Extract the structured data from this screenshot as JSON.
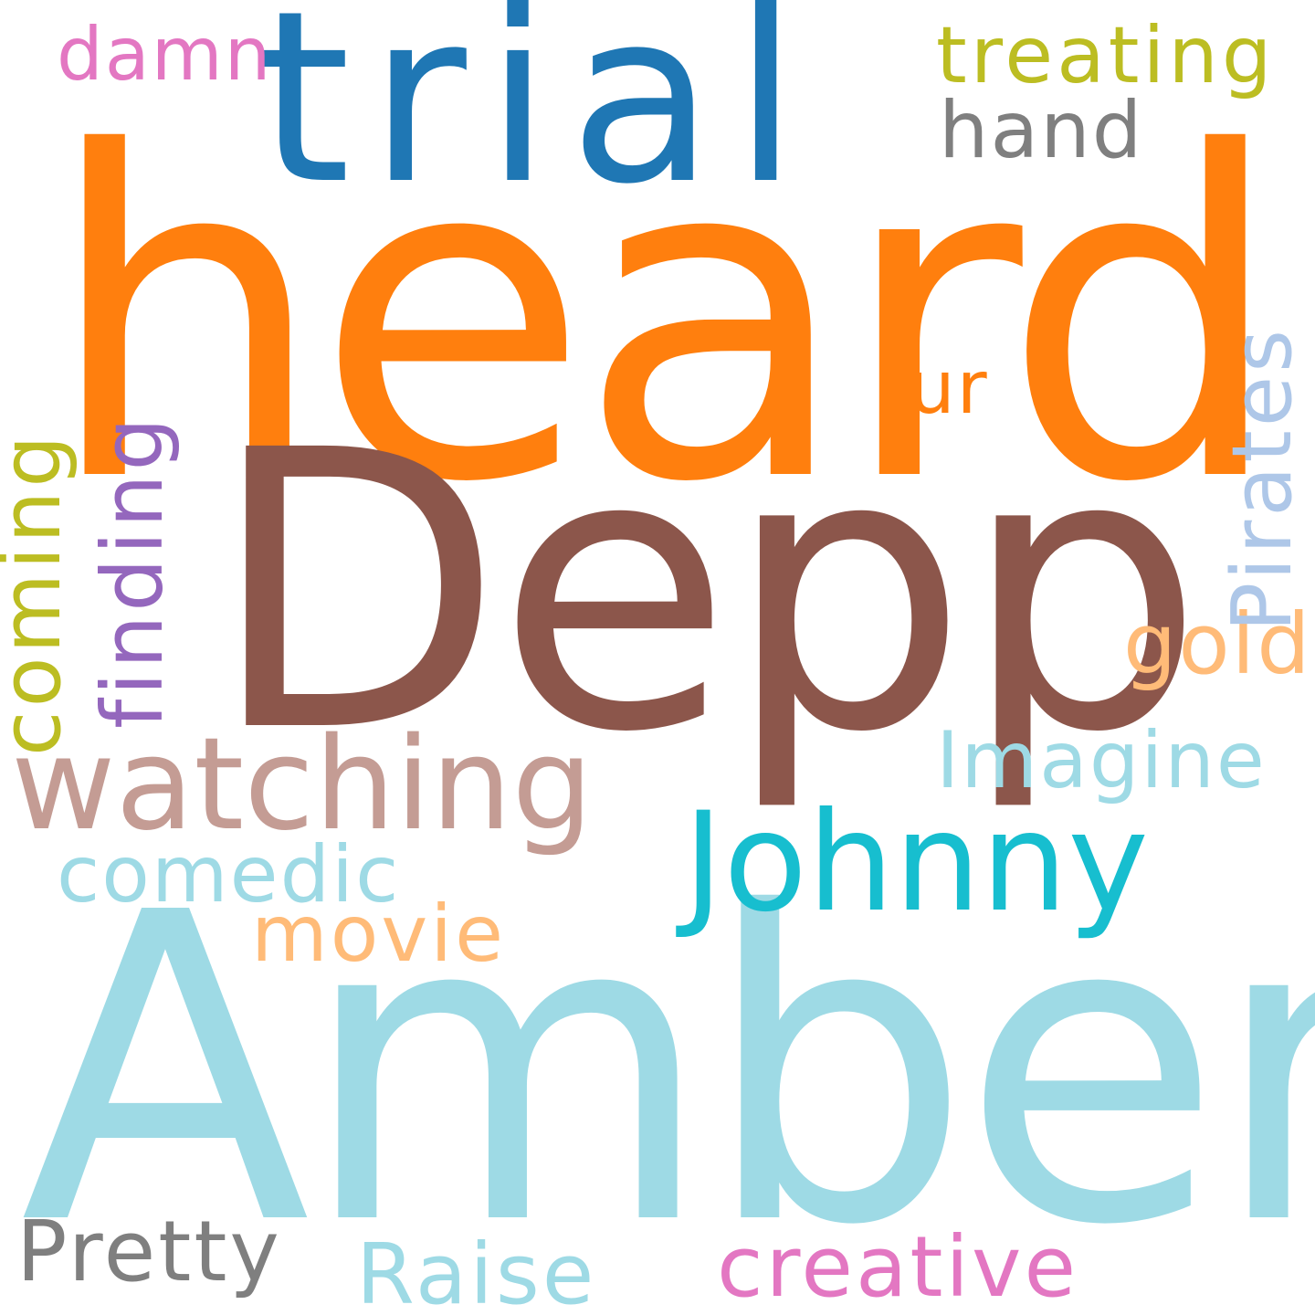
{
  "words": [
    {
      "id": "heard",
      "text": "heard",
      "color": "#ff7f0e"
    },
    {
      "id": "amber",
      "text": "Amber",
      "color": "#9edae5"
    },
    {
      "id": "depp",
      "text": "Depp",
      "color": "#8c564b"
    },
    {
      "id": "trial",
      "text": "trial",
      "color": "#1f77b4"
    },
    {
      "id": "johnny",
      "text": "Johnny",
      "color": "#17becf"
    },
    {
      "id": "watching",
      "text": "watching",
      "color": "#c49c94"
    },
    {
      "id": "finding",
      "text": "finding",
      "color": "#9467bd"
    },
    {
      "id": "coming",
      "text": "coming",
      "color": "#bcbd22"
    },
    {
      "id": "pirates",
      "text": "Pirates",
      "color": "#aec7e8"
    },
    {
      "id": "treating",
      "text": "treating",
      "color": "#bcbd22"
    },
    {
      "id": "imagine",
      "text": "Imagine",
      "color": "#9edae5"
    },
    {
      "id": "comedic",
      "text": "comedic",
      "color": "#9edae5"
    },
    {
      "id": "creative",
      "text": "creative",
      "color": "#e377c2"
    },
    {
      "id": "movie",
      "text": "movie",
      "color": "#ffbb78"
    },
    {
      "id": "raise",
      "text": "Raise",
      "color": "#9edae5"
    },
    {
      "id": "pretty",
      "text": "Pretty",
      "color": "#7f7f7f"
    },
    {
      "id": "hand",
      "text": "hand",
      "color": "#7f7f7f"
    },
    {
      "id": "damn",
      "text": "damn",
      "color": "#e377c2"
    },
    {
      "id": "gold",
      "text": "gold",
      "color": "#ffbb78"
    },
    {
      "id": "ur",
      "text": "ur",
      "color": "#ff7f0e"
    }
  ]
}
